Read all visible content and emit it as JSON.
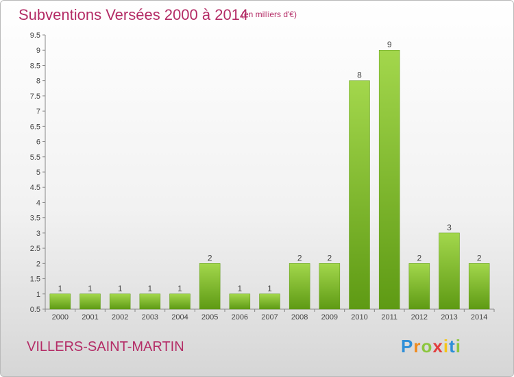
{
  "title": "Subventions Versées 2000 à 2014",
  "subtitle": "(en milliers d'€)",
  "commune": "VILLERS-SAINT-MARTIN",
  "logo": {
    "letters": [
      "P",
      "r",
      "o",
      "x",
      "i",
      "t",
      "i"
    ],
    "colors": [
      "#2f8fd8",
      "#f08a1c",
      "#8cc63f",
      "#e23d3d",
      "#f5c518",
      "#2f8fd8",
      "#8cc63f"
    ]
  },
  "colors": {
    "accent": "#b42c66",
    "bar_light": "#a3d74c",
    "bar_dark": "#5e9a14",
    "axis": "#888888"
  },
  "chart_data": {
    "type": "bar",
    "title": "Subventions Versées 2000 à 2014",
    "subtitle": "(en milliers d'€)",
    "categories": [
      "2000",
      "2001",
      "2002",
      "2003",
      "2004",
      "2005",
      "2006",
      "2007",
      "2008",
      "2009",
      "2010",
      "2011",
      "2012",
      "2013",
      "2014"
    ],
    "values": [
      1,
      1,
      1,
      1,
      1,
      2,
      1,
      1,
      2,
      2,
      8,
      9,
      2,
      3,
      2
    ],
    "data_labels": [
      "1",
      "1",
      "1",
      "1",
      "1",
      "2",
      "1",
      "1",
      "2",
      "2",
      "8",
      "9",
      "2",
      "3",
      "2"
    ],
    "yticks": [
      "0.5",
      "1",
      "1.5",
      "2",
      "2.5",
      "3",
      "3.5",
      "4",
      "4.5",
      "5",
      "5.5",
      "6",
      "6.5",
      "7",
      "7.5",
      "8",
      "8.5",
      "9",
      "9.5"
    ],
    "ylim": [
      0.5,
      9.5
    ],
    "grid": false
  }
}
